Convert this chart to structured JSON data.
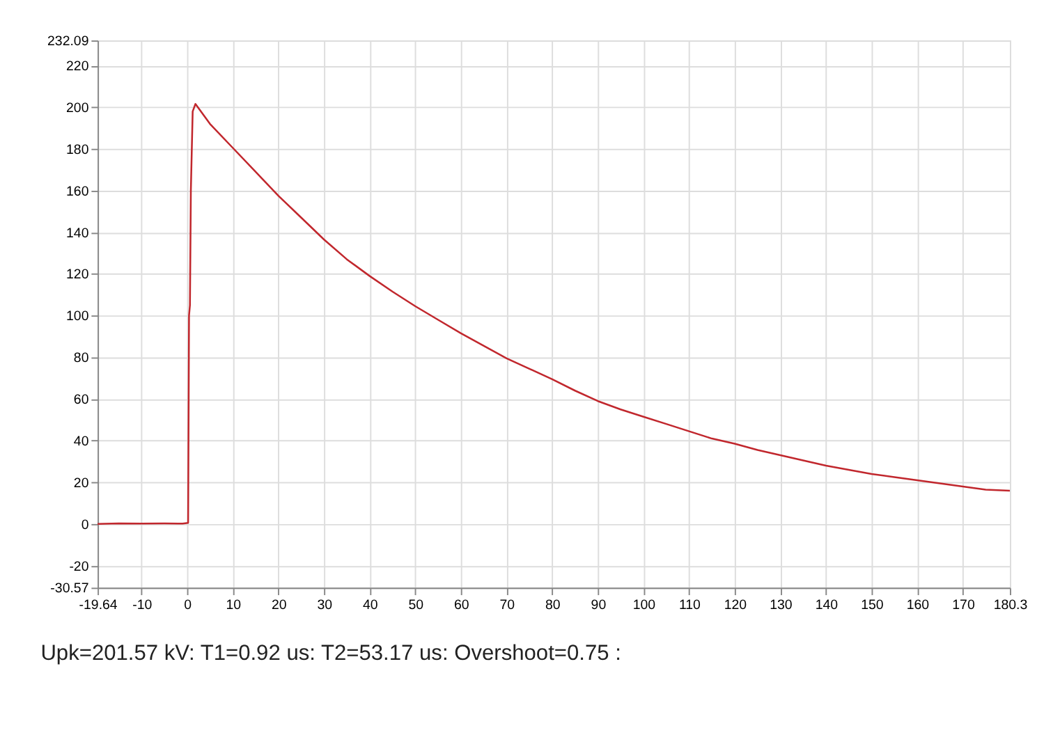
{
  "chart_data": {
    "type": "line",
    "x": [
      -19.64,
      -15,
      -10,
      -5,
      -1,
      0.2,
      0.4,
      0.6,
      0.8,
      1.2,
      1.8,
      5,
      10,
      15,
      20,
      25,
      30,
      35,
      40,
      45,
      50,
      55,
      60,
      65,
      70,
      75,
      80,
      85,
      90,
      95,
      100,
      105,
      110,
      115,
      120,
      125,
      130,
      135,
      140,
      145,
      150,
      155,
      160,
      165,
      170,
      175,
      180.3
    ],
    "series": [
      {
        "color": "#c1272d",
        "values": [
          0,
          0.3,
          0.2,
          0.3,
          0.2,
          0.5,
          100,
          105,
          160,
          198,
          201.6,
          192,
          180.5,
          169,
          157.5,
          147,
          136.5,
          127,
          119,
          111.5,
          104.5,
          98,
          91.5,
          85.5,
          79.5,
          74.5,
          69.5,
          64,
          59,
          55,
          51.5,
          48,
          44.5,
          41,
          38.5,
          35.5,
          33,
          30.5,
          28,
          26,
          24,
          22.5,
          21,
          19.5,
          18,
          16.5,
          16
        ]
      }
    ],
    "xlim": [
      -19.64,
      180.3
    ],
    "xticks": [
      -19.64,
      -10,
      0,
      10,
      20,
      30,
      40,
      50,
      60,
      70,
      80,
      90,
      100,
      110,
      120,
      130,
      140,
      150,
      160,
      170,
      180.3
    ],
    "ylim": [
      -30.57,
      232.09
    ],
    "yticks": [
      -30.57,
      -20,
      0,
      20,
      40,
      60,
      80,
      100,
      120,
      140,
      160,
      180,
      200,
      220,
      232.09
    ],
    "grid": true,
    "annotations": [
      "Upk=201.57 kV: T1=0.92 us: T2=53.17 us: Overshoot=0.75  :"
    ]
  }
}
